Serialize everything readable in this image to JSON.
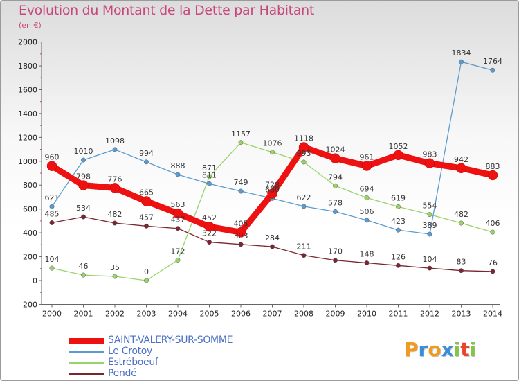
{
  "title": "Evolution du Montant de la Dette par Habitant",
  "subtitle": "(en €)",
  "chart_data": {
    "type": "line",
    "title": "Evolution du Montant de la Dette par Habitant",
    "ylabel": "(en €)",
    "ylim": [
      -200,
      2000
    ],
    "yticks": [
      -200,
      0,
      200,
      400,
      600,
      800,
      1000,
      1200,
      1400,
      1600,
      1800,
      2000
    ],
    "x": [
      "2000",
      "2001",
      "2002",
      "2003",
      "2004",
      "2005",
      "2006",
      "2007",
      "2008",
      "2009",
      "2010",
      "2011",
      "2012",
      "2013",
      "2014"
    ],
    "grid": false,
    "legend_position": "bottom-left",
    "series": [
      {
        "name": "SAINT-VALERY-SUR-SOMME",
        "color": "#ee1111",
        "values": [
          960,
          798,
          776,
          665,
          563,
          452,
          405,
          728,
          1118,
          1024,
          961,
          1052,
          983,
          942,
          883
        ]
      },
      {
        "name": "Le Crotoy",
        "color": "#5b9bd0",
        "values": [
          621,
          1010,
          1098,
          994,
          888,
          811,
          749,
          689,
          622,
          578,
          506,
          423,
          389,
          1834,
          1764
        ]
      },
      {
        "name": "Estréboeuf",
        "color": "#99d36a",
        "values": [
          104,
          46,
          35,
          0,
          172,
          871,
          1157,
          1076,
          993,
          794,
          694,
          619,
          554,
          482,
          406
        ]
      },
      {
        "name": "Pendé",
        "color": "#7a2630",
        "values": [
          485,
          534,
          482,
          457,
          437,
          322,
          303,
          284,
          211,
          170,
          148,
          126,
          104,
          83,
          76
        ]
      }
    ]
  },
  "logo": {
    "letters": [
      "P",
      "r",
      "o",
      "x",
      "i",
      "t",
      "i"
    ],
    "colors": [
      "#f29a1f",
      "#3c8dd8",
      "#f29a1f",
      "#3c8dd8",
      "#86c34a",
      "#e8452c",
      "#86c34a"
    ]
  }
}
